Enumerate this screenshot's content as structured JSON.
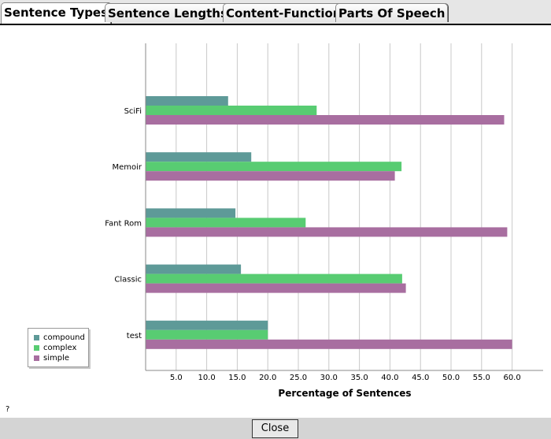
{
  "tabs": [
    {
      "label": "Sentence Types",
      "active": true
    },
    {
      "label": "Sentence Lengths",
      "active": false
    },
    {
      "label": "Content-Function",
      "active": false
    },
    {
      "label": "Parts Of Speech",
      "active": false
    }
  ],
  "chart_data": {
    "type": "bar",
    "orientation": "horizontal",
    "xlabel": "Percentage of Sentences",
    "ylabel": "",
    "xlim": [
      0,
      64
    ],
    "xticks": [
      "5.0",
      "10.0",
      "15.0",
      "20.0",
      "25.0",
      "30.0",
      "35.0",
      "40.0",
      "45.0",
      "50.0",
      "55.0",
      "60.0"
    ],
    "grid": true,
    "legend_position": "bottom-left",
    "categories": [
      "SciFi",
      "Memoir",
      "Fant Rom",
      "Classic",
      "test"
    ],
    "series": [
      {
        "name": "compound",
        "color": "#5e9a98",
        "values": [
          13.5,
          17.3,
          14.7,
          15.6,
          20.0
        ]
      },
      {
        "name": "complex",
        "color": "#58cc72",
        "values": [
          28.0,
          41.9,
          26.2,
          42.0,
          20.0
        ]
      },
      {
        "name": "simple",
        "color": "#a86ea0",
        "values": [
          58.7,
          40.8,
          59.2,
          42.6,
          60.0
        ]
      }
    ]
  },
  "help_text": "?",
  "close_label": "Close"
}
